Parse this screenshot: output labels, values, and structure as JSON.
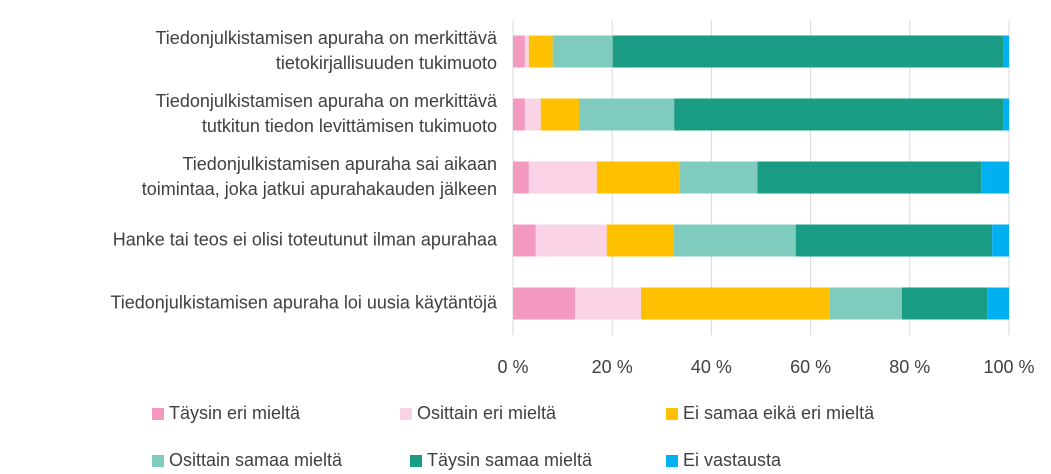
{
  "chart_data": {
    "type": "stacked-bar-horizontal",
    "categories": [
      [
        "Tiedonjulkistamisen apuraha on merkittävä",
        "tietokirjallisuuden tukimuoto"
      ],
      [
        "Tiedonjulkistamisen apuraha on merkittävä",
        "tutkitun tiedon levittämisen tukimuoto"
      ],
      [
        "Tiedonjulkistamisen apuraha sai aikaan",
        "toimintaa, joka jatkui apurahakauden jälkeen"
      ],
      [
        "Hanke tai teos ei olisi toteutunut ilman apurahaa"
      ],
      [
        "Tiedonjulkistamisen apuraha loi uusia käytäntöjä"
      ]
    ],
    "series": [
      {
        "name": "Täysin eri mieltä",
        "color": "#f49ac1",
        "values": [
          2.4,
          2.4,
          3.2,
          4.6,
          12.5
        ]
      },
      {
        "name": "Osittain eri mieltä",
        "color": "#fad4e6",
        "values": [
          0.8,
          3.2,
          13.7,
          14.3,
          13.3
        ]
      },
      {
        "name": "Ei samaa eikä eri mieltä",
        "color": "#ffc000",
        "values": [
          4.8,
          7.7,
          16.7,
          13.5,
          38.1
        ]
      },
      {
        "name": "Osittain samaa mieltä",
        "color": "#7fcbbd",
        "values": [
          12.1,
          19.2,
          15.7,
          24.6,
          14.5
        ]
      },
      {
        "name": "Täysin samaa mieltä",
        "color": "#1a9b84",
        "values": [
          78.7,
          66.3,
          45.1,
          39.6,
          17.2
        ]
      },
      {
        "name": "Ei vastausta",
        "color": "#00b0f0",
        "values": [
          1.2,
          1.2,
          5.6,
          3.4,
          4.4
        ]
      }
    ],
    "xlim": [
      0,
      100
    ],
    "xticks": [
      {
        "value": 0,
        "label": "0 %"
      },
      {
        "value": 20,
        "label": "20 %"
      },
      {
        "value": 40,
        "label": "40 %"
      },
      {
        "value": 60,
        "label": "60 %"
      },
      {
        "value": 80,
        "label": "80 %"
      },
      {
        "value": 100,
        "label": "100 %"
      }
    ],
    "grid": true,
    "legend": "bottom"
  }
}
